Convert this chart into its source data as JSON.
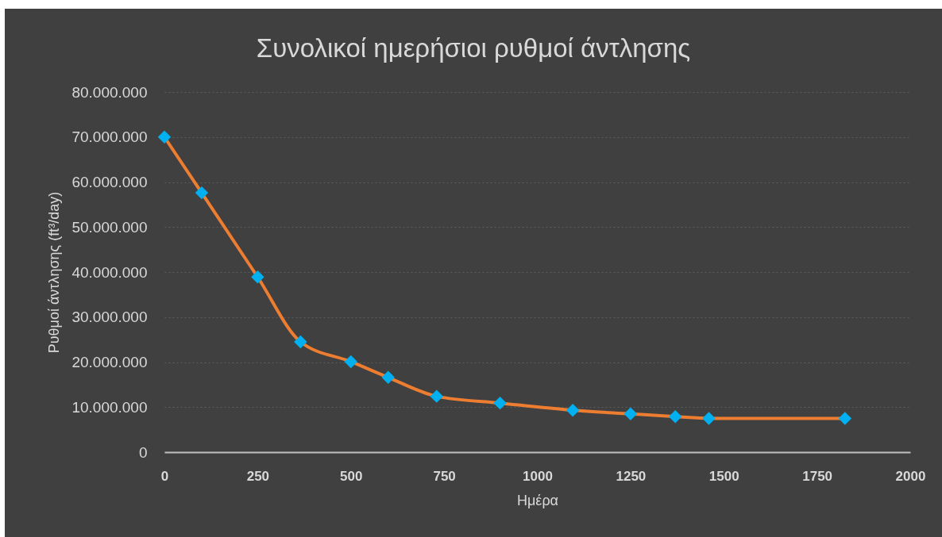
{
  "chart_data": {
    "type": "line",
    "title": "Συνολικοί ημερήσιοι ρυθμοί άντλησης",
    "xlabel": "Ημέρα",
    "ylabel": "Ρυθμοί άντλησης (ft³/day)",
    "x": [
      0,
      100,
      250,
      365,
      500,
      600,
      730,
      900,
      1095,
      1250,
      1370,
      1460,
      1825
    ],
    "series": [
      {
        "color": "#ed7d31",
        "colors": [
          "#00b0f0",
          "#00b0f0",
          "#00b0f0",
          "#00b0f0",
          "#00b0f0",
          "#00b0f0",
          "#00b0f0",
          "#00b0f0",
          "#00b0f0",
          "#00b0f0",
          "#00b0f0",
          "#00b0f0",
          "#00b0f0"
        ],
        "values": [
          70000000,
          57600000,
          38900000,
          24500000,
          20100000,
          16600000,
          12400000,
          10900000,
          9300000,
          8500000,
          7900000,
          7500000,
          7500000
        ]
      }
    ],
    "xlim": [
      0,
      2000
    ],
    "xticks": [
      0,
      250,
      500,
      750,
      1000,
      1250,
      1500,
      1750,
      2000
    ],
    "ylim": [
      0,
      80000000
    ],
    "yticks": [
      0,
      {
        "value": 10000000,
        "label": "10.000.000"
      },
      {
        "value": 20000000,
        "label": "20.000.000"
      },
      {
        "value": 30000000,
        "label": "30.000.000"
      },
      {
        "value": 40000000,
        "label": "40.000.000"
      },
      {
        "value": 50000000,
        "label": "50.000.000"
      },
      {
        "value": 60000000,
        "label": "60.000.000"
      },
      {
        "value": 70000000,
        "label": "70.000.000"
      },
      {
        "value": 80000000,
        "label": "80.000.000"
      }
    ],
    "grid": "y",
    "marker": "diamond"
  }
}
